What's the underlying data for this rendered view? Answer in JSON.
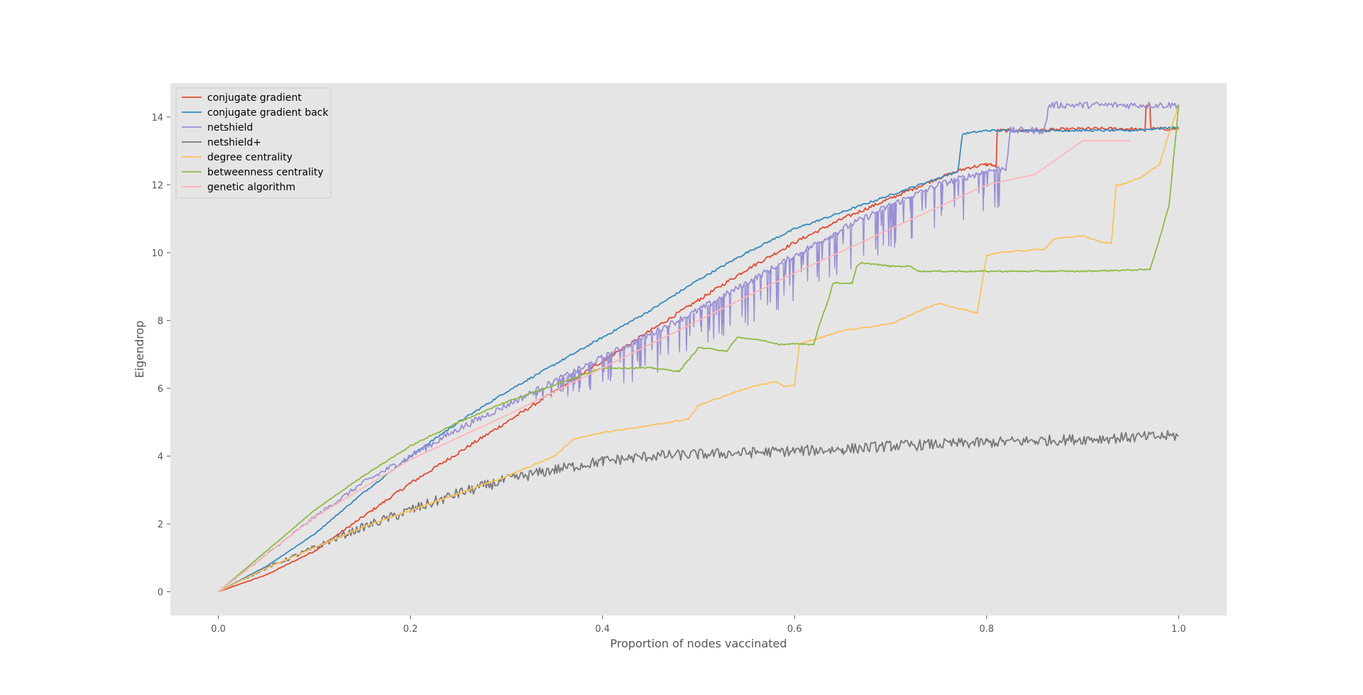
{
  "chart_data": {
    "type": "line",
    "title": "",
    "xlabel": "Proportion of nodes vaccinated",
    "ylabel": "Eigendrop",
    "xlim": [
      -0.05,
      1.05
    ],
    "ylim": [
      -0.7,
      15.0
    ],
    "xticks": [
      0.0,
      0.2,
      0.4,
      0.6,
      0.8,
      1.0
    ],
    "xtick_labels": [
      "0.0",
      "0.2",
      "0.4",
      "0.6",
      "0.8",
      "1.0"
    ],
    "yticks": [
      0,
      2,
      4,
      6,
      8,
      10,
      12,
      14
    ],
    "ytick_labels": [
      "0",
      "2",
      "4",
      "6",
      "8",
      "10",
      "12",
      "14"
    ],
    "grid": false,
    "legend_position": "top-left",
    "background": "#e5e5e5",
    "series": [
      {
        "name": "conjugate gradient",
        "color": "#e24a33",
        "noise": 0.05,
        "x": [
          0,
          0.05,
          0.1,
          0.15,
          0.2,
          0.25,
          0.3,
          0.35,
          0.4,
          0.45,
          0.5,
          0.55,
          0.6,
          0.65,
          0.7,
          0.75,
          0.78,
          0.8,
          0.805,
          0.81,
          0.811,
          0.85,
          0.9,
          0.95,
          0.965,
          0.966,
          0.97,
          0.971,
          1.0
        ],
        "y": [
          0,
          0.5,
          1.2,
          2.2,
          3.2,
          4.1,
          5.0,
          5.9,
          6.8,
          7.7,
          8.6,
          9.5,
          10.3,
          11.0,
          11.6,
          12.2,
          12.5,
          12.6,
          12.6,
          12.5,
          13.6,
          13.6,
          13.65,
          13.65,
          13.6,
          14.35,
          14.35,
          13.65,
          13.65
        ]
      },
      {
        "name": "conjugate gradient back",
        "color": "#348abd",
        "noise": 0.03,
        "x": [
          0,
          0.05,
          0.1,
          0.15,
          0.2,
          0.25,
          0.3,
          0.35,
          0.4,
          0.45,
          0.5,
          0.55,
          0.6,
          0.65,
          0.7,
          0.75,
          0.77,
          0.775,
          0.8,
          0.85,
          0.9,
          0.95,
          1.0
        ],
        "y": [
          0,
          0.75,
          1.7,
          2.9,
          4.0,
          5.0,
          5.9,
          6.7,
          7.5,
          8.3,
          9.2,
          10.0,
          10.7,
          11.2,
          11.7,
          12.2,
          12.4,
          13.5,
          13.6,
          13.6,
          13.6,
          13.6,
          13.7
        ]
      },
      {
        "name": "netshield",
        "color": "#988ed5",
        "noise": 0.1,
        "spikes": {
          "from": 0.33,
          "to": 0.82,
          "count": 110,
          "depth": 1.3
        },
        "x": [
          0,
          0.05,
          0.1,
          0.15,
          0.2,
          0.25,
          0.3,
          0.35,
          0.4,
          0.45,
          0.5,
          0.55,
          0.6,
          0.65,
          0.7,
          0.75,
          0.8,
          0.82,
          0.825,
          0.86,
          0.865,
          0.87,
          1.0
        ],
        "y": [
          0,
          1.1,
          2.2,
          3.2,
          4.0,
          4.8,
          5.5,
          6.2,
          6.9,
          7.6,
          8.3,
          9.1,
          9.9,
          10.7,
          11.4,
          12.0,
          12.4,
          12.5,
          13.6,
          13.6,
          14.35,
          14.35,
          14.35
        ]
      },
      {
        "name": "netshield+",
        "color": "#777777",
        "noise": 0.16,
        "x": [
          0,
          0.05,
          0.1,
          0.15,
          0.2,
          0.25,
          0.3,
          0.35,
          0.4,
          0.45,
          0.5,
          0.55,
          0.6,
          0.65,
          0.7,
          0.75,
          0.8,
          0.85,
          0.9,
          0.95,
          1.0
        ],
        "y": [
          0,
          0.7,
          1.3,
          1.9,
          2.4,
          2.9,
          3.3,
          3.6,
          3.85,
          4.0,
          4.05,
          4.1,
          4.15,
          4.2,
          4.3,
          4.35,
          4.4,
          4.45,
          4.5,
          4.55,
          4.6
        ]
      },
      {
        "name": "degree centrality",
        "color": "#fbc15e",
        "noise": 0.02,
        "x": [
          0,
          0.05,
          0.1,
          0.15,
          0.2,
          0.25,
          0.3,
          0.35,
          0.37,
          0.4,
          0.45,
          0.49,
          0.5,
          0.55,
          0.58,
          0.59,
          0.6,
          0.605,
          0.65,
          0.7,
          0.74,
          0.75,
          0.78,
          0.79,
          0.8,
          0.81,
          0.86,
          0.87,
          0.9,
          0.92,
          0.93,
          0.935,
          0.94,
          0.96,
          0.98,
          0.99,
          1.0
        ],
        "y": [
          0,
          0.7,
          1.3,
          1.9,
          2.4,
          2.9,
          3.4,
          4.0,
          4.5,
          4.7,
          4.9,
          5.1,
          5.5,
          6.0,
          6.2,
          6.05,
          6.1,
          7.3,
          7.7,
          7.9,
          8.4,
          8.5,
          8.3,
          8.2,
          9.9,
          10.0,
          10.1,
          10.4,
          10.5,
          10.3,
          10.3,
          12.0,
          12.0,
          12.2,
          12.6,
          13.5,
          14.35
        ]
      },
      {
        "name": "betweenness centrality",
        "color": "#8eba42",
        "noise": 0.02,
        "x": [
          0,
          0.05,
          0.1,
          0.15,
          0.2,
          0.25,
          0.3,
          0.35,
          0.4,
          0.45,
          0.48,
          0.5,
          0.53,
          0.54,
          0.57,
          0.58,
          0.6,
          0.62,
          0.625,
          0.635,
          0.64,
          0.66,
          0.665,
          0.67,
          0.7,
          0.72,
          0.73,
          0.9,
          0.97,
          0.98,
          0.99,
          1.0
        ],
        "y": [
          0,
          1.2,
          2.4,
          3.4,
          4.3,
          5.0,
          5.6,
          6.1,
          6.6,
          6.6,
          6.5,
          7.2,
          7.1,
          7.5,
          7.4,
          7.3,
          7.3,
          7.3,
          7.8,
          8.6,
          9.1,
          9.1,
          9.6,
          9.7,
          9.6,
          9.6,
          9.45,
          9.45,
          9.5,
          10.4,
          11.4,
          14.35
        ]
      },
      {
        "name": "genetic algorithm",
        "color": "#ffb5b8",
        "noise": 0,
        "x": [
          0,
          0.05,
          0.1,
          0.2,
          0.3,
          0.4,
          0.5,
          0.6,
          0.7,
          0.8,
          0.85,
          0.9,
          0.95
        ],
        "y": [
          0,
          1.1,
          2.2,
          3.9,
          5.2,
          6.6,
          8.0,
          9.4,
          10.7,
          12.0,
          12.3,
          13.3,
          13.3
        ]
      }
    ]
  }
}
